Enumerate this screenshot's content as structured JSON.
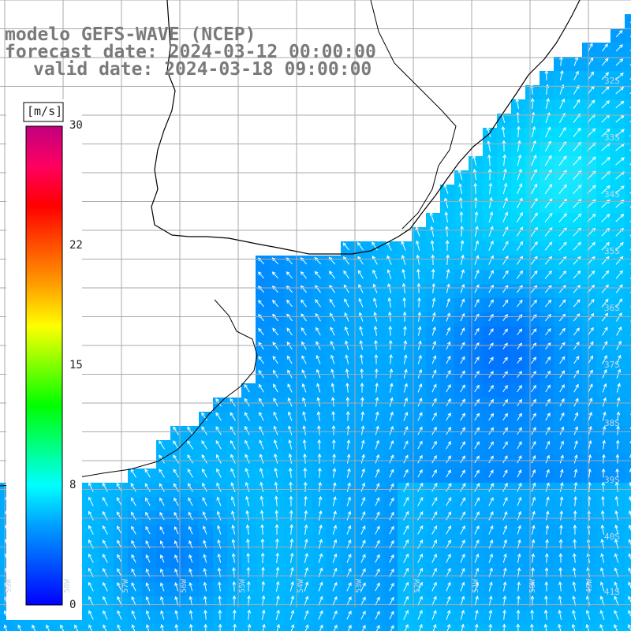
{
  "title": {
    "line1": "modelo GEFS-WAVE (NCEP)",
    "line2": "forecast date: 2024-03-12 00:00:00",
    "line3": "valid date: 2024-03-18 09:00:00"
  },
  "colorbar": {
    "unit": "[m/s]",
    "ticks": [
      "30",
      "22",
      "15",
      "8",
      "0"
    ],
    "tick_values": [
      30,
      22,
      15,
      8,
      0
    ],
    "min": 0,
    "max": 30,
    "colors": [
      "#0000ff",
      "#0050ff",
      "#00a0ff",
      "#00ffff",
      "#00ff80",
      "#00ff00",
      "#80ff00",
      "#ffff00",
      "#ffa000",
      "#ff5000",
      "#ff0000",
      "#ff0060",
      "#c00080"
    ]
  },
  "lat_labels": [
    "32S",
    "33S",
    "34S",
    "35S",
    "36S",
    "37S",
    "38S",
    "39S",
    "40S",
    "41S"
  ],
  "lon_labels": [
    "59W",
    "58W",
    "57W",
    "56W",
    "55W",
    "54W",
    "53W",
    "52W",
    "51W",
    "50W",
    "49W"
  ],
  "icons": {
    "wind-arrow": "arrow-icon"
  }
}
